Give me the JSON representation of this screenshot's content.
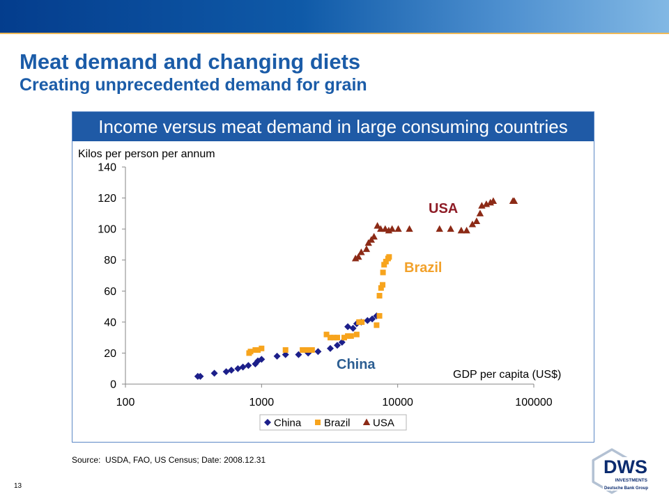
{
  "slide": {
    "title": "Meat demand and changing diets",
    "subtitle": "Creating unprecedented demand for grain",
    "source": "Source:  USDA, FAO, US Census; Date: 2008.12.31",
    "page_number": "13"
  },
  "logo": {
    "name": "DWS",
    "line2": "INVESTMENTS",
    "line3": "Deutsche Bank Group"
  },
  "colors": {
    "title": "#1b5ca8",
    "chart_header": "#1f5aa6",
    "panel_border": "#5b87c5",
    "bar_start": "#043d8d",
    "bar_end": "#82b8e4",
    "logo_navy": "#0b2b6f"
  },
  "chart_data": {
    "type": "scatter",
    "title": "Income versus meat demand in large consuming countries",
    "xlabel": "GDP per capita (US$)",
    "ylabel": "Kilos per person per annum",
    "xscale": "log",
    "xlim": [
      100,
      100000
    ],
    "ylim": [
      0,
      140
    ],
    "xticks": [
      100,
      1000,
      10000,
      100000
    ],
    "yticks": [
      0,
      20,
      40,
      60,
      80,
      100,
      120,
      140
    ],
    "grid": false,
    "legend": "bottom",
    "series": [
      {
        "name": "China",
        "marker": "diamond",
        "color": "#1c1f8a",
        "points": [
          [
            340,
            5
          ],
          [
            355,
            5
          ],
          [
            450,
            7
          ],
          [
            550,
            8
          ],
          [
            600,
            9
          ],
          [
            670,
            10
          ],
          [
            730,
            11
          ],
          [
            800,
            12
          ],
          [
            900,
            13
          ],
          [
            940,
            15
          ],
          [
            1000,
            16
          ],
          [
            1300,
            18
          ],
          [
            1500,
            19
          ],
          [
            1870,
            19
          ],
          [
            2200,
            20
          ],
          [
            2600,
            21
          ],
          [
            3200,
            23
          ],
          [
            3600,
            25
          ],
          [
            3900,
            27
          ],
          [
            4300,
            37
          ],
          [
            4700,
            36
          ],
          [
            5000,
            39
          ],
          [
            5400,
            40
          ],
          [
            6000,
            41
          ],
          [
            6500,
            42
          ],
          [
            7000,
            44
          ]
        ]
      },
      {
        "name": "Brazil",
        "marker": "square",
        "color": "#f7a41d",
        "points": [
          [
            810,
            20
          ],
          [
            830,
            21
          ],
          [
            900,
            22
          ],
          [
            940,
            22
          ],
          [
            1000,
            23
          ],
          [
            1500,
            22
          ],
          [
            2000,
            22
          ],
          [
            2150,
            22
          ],
          [
            2350,
            22
          ],
          [
            3000,
            32
          ],
          [
            3200,
            30
          ],
          [
            3400,
            30
          ],
          [
            3600,
            30
          ],
          [
            4050,
            30
          ],
          [
            4300,
            31
          ],
          [
            4550,
            31
          ],
          [
            5000,
            32
          ],
          [
            5200,
            40
          ],
          [
            5450,
            40
          ],
          [
            7000,
            38
          ],
          [
            7350,
            44
          ],
          [
            7350,
            57
          ],
          [
            7550,
            62
          ],
          [
            7750,
            64
          ],
          [
            7800,
            72
          ],
          [
            7950,
            77
          ],
          [
            8200,
            79
          ],
          [
            8500,
            81
          ],
          [
            8650,
            82
          ]
        ]
      },
      {
        "name": "USA",
        "marker": "triangle",
        "color": "#8c2a16",
        "points": [
          [
            4900,
            81
          ],
          [
            5150,
            82
          ],
          [
            5400,
            85
          ],
          [
            5900,
            87
          ],
          [
            6100,
            91
          ],
          [
            6400,
            93
          ],
          [
            6700,
            95
          ],
          [
            7100,
            102
          ],
          [
            7500,
            100
          ],
          [
            8100,
            100
          ],
          [
            8600,
            99
          ],
          [
            9100,
            100
          ],
          [
            10100,
            100
          ],
          [
            12200,
            100
          ],
          [
            20300,
            100
          ],
          [
            24500,
            100
          ],
          [
            29300,
            99
          ],
          [
            32100,
            99
          ],
          [
            35400,
            103
          ],
          [
            38000,
            105
          ],
          [
            40300,
            110
          ],
          [
            41500,
            115
          ],
          [
            44800,
            116
          ],
          [
            48000,
            117
          ],
          [
            50400,
            118
          ],
          [
            70200,
            118
          ],
          [
            71800,
            118
          ]
        ]
      }
    ],
    "annotations": [
      {
        "text": "USA",
        "color": "#8e1c26"
      },
      {
        "text": "Brazil",
        "color": "#f2a12a"
      },
      {
        "text": "China",
        "color": "#2c5e92"
      }
    ]
  }
}
